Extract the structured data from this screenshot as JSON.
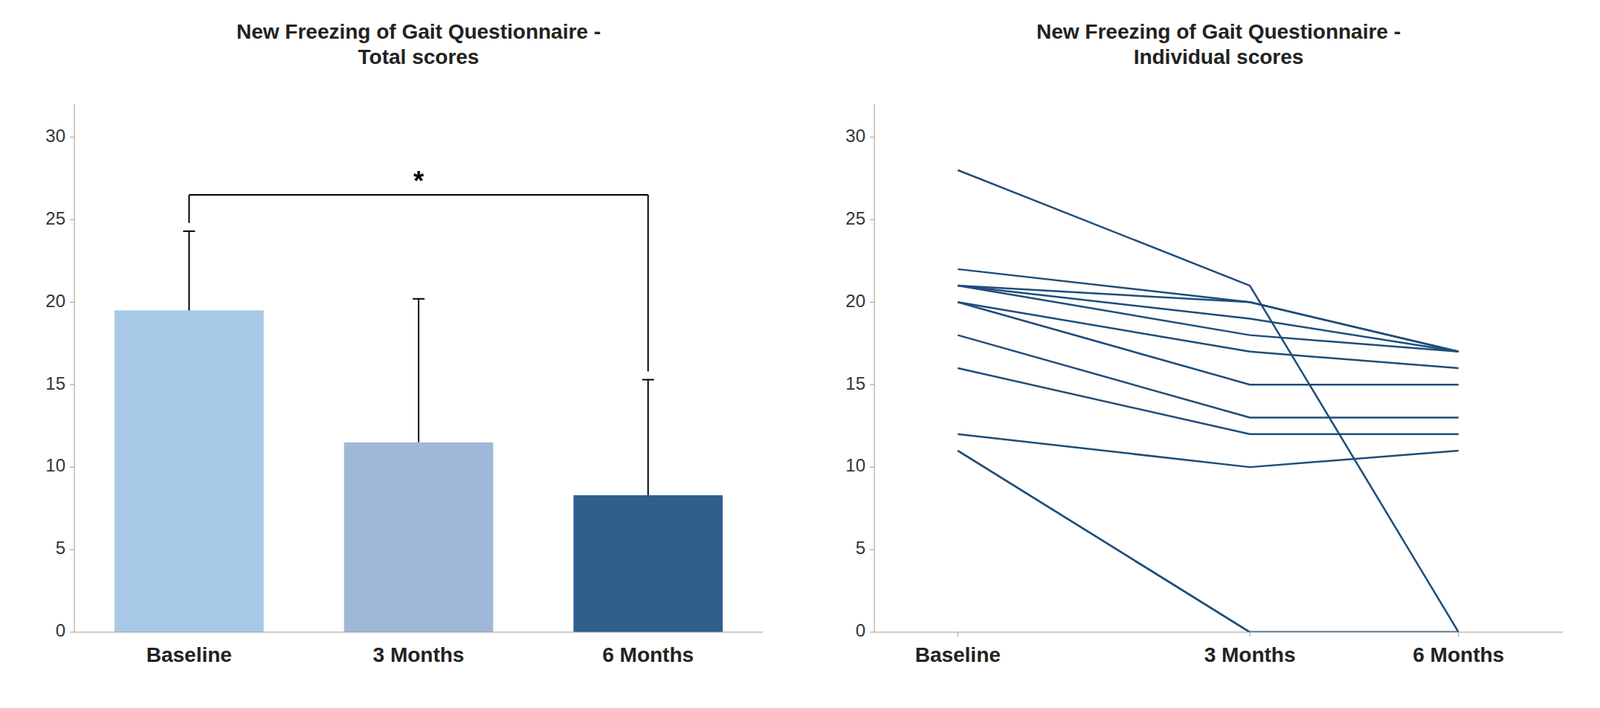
{
  "chart_data": [
    {
      "type": "bar",
      "title": "New Freezing of Gait Questionnaire -\nTotal scores",
      "categories": [
        "Baseline",
        "3 Months",
        "6 Months"
      ],
      "values": [
        19.5,
        11.5,
        8.3
      ],
      "errors": [
        4.8,
        8.7,
        7.0
      ],
      "colors": [
        "#a8c8e8",
        "#a0b8d8",
        "#2e5f8a"
      ],
      "ylim": [
        0,
        32
      ],
      "yticks": [
        0,
        5,
        10,
        15,
        20,
        25,
        30
      ],
      "grid": false,
      "bracket": {
        "from": "Baseline",
        "to": "6 Months",
        "y": 26.5,
        "ends": [
          24.8,
          15.8
        ],
        "label": "*"
      }
    },
    {
      "type": "line",
      "title": "New Freezing of Gait Questionnaire -\nIndividual scores",
      "x": [
        0,
        1.4,
        2.4
      ],
      "xlim": [
        -0.4,
        2.9
      ],
      "xticks": [
        {
          "value": 0,
          "label": "Baseline"
        },
        {
          "value": 1.4,
          "label": "3 Months"
        },
        {
          "value": 2.4,
          "label": "6 Months"
        }
      ],
      "ylim": [
        0,
        32
      ],
      "yticks": [
        0,
        5,
        10,
        15,
        20,
        25,
        30
      ],
      "grid": false,
      "color": "#1e4d7a",
      "series": [
        {
          "values": [
            28,
            21,
            0
          ]
        },
        {
          "values": [
            22,
            20,
            17
          ]
        },
        {
          "values": [
            21,
            20,
            17
          ]
        },
        {
          "values": [
            21,
            19,
            17
          ]
        },
        {
          "values": [
            21,
            18,
            17
          ]
        },
        {
          "values": [
            20,
            17,
            16
          ]
        },
        {
          "values": [
            20,
            15,
            15
          ]
        },
        {
          "values": [
            18,
            13,
            13
          ]
        },
        {
          "values": [
            16,
            12,
            12
          ]
        },
        {
          "values": [
            12,
            10,
            11
          ]
        },
        {
          "values": [
            11,
            0,
            0
          ]
        },
        {
          "values": [
            11,
            0,
            0
          ]
        }
      ]
    }
  ]
}
